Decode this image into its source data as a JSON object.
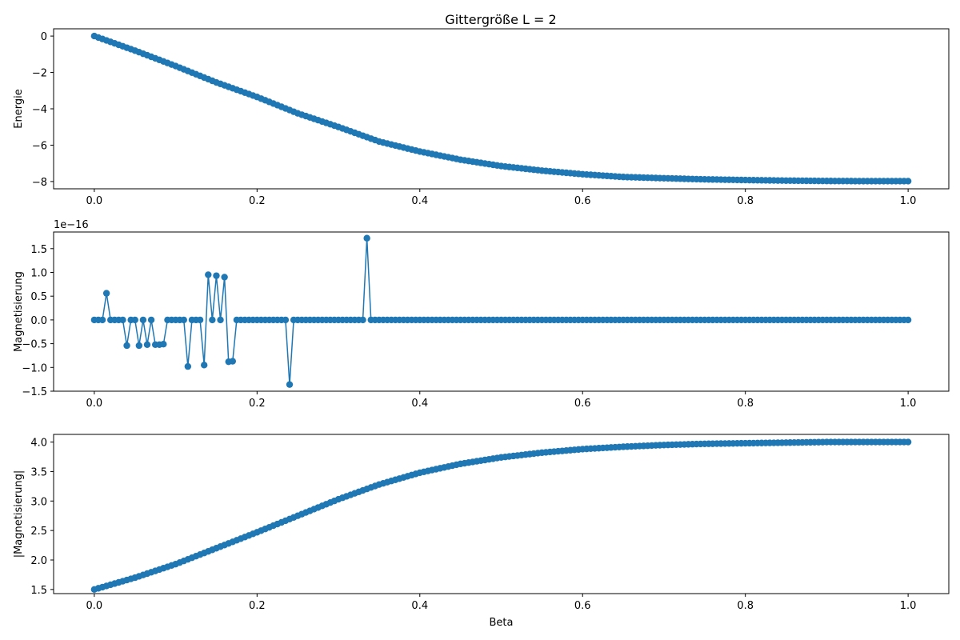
{
  "figure": {
    "title": "Gittergröße L = 2",
    "line_color": "#1f77b4"
  },
  "chart_data": [
    {
      "type": "line",
      "subtitle": "Gittergröße L = 2",
      "xlabel": "",
      "ylabel": "Energie",
      "xlim": [
        -0.05,
        1.05
      ],
      "ylim": [
        -8.4,
        0.4
      ],
      "xticks": [
        0.0,
        0.2,
        0.4,
        0.6,
        0.8,
        1.0
      ],
      "xtick_labels": [
        "0.0",
        "0.2",
        "0.4",
        "0.6",
        "0.8",
        "1.0"
      ],
      "yticks": [
        0,
        -2,
        -4,
        -6,
        -8
      ],
      "ytick_labels": [
        "0",
        "−2",
        "−4",
        "−6",
        "−8"
      ],
      "offset_text": "",
      "marker": "circle",
      "series": [
        {
          "x_range": [
            0.0,
            1.0
          ],
          "n_points": 201,
          "x_key": [
            0.0,
            0.05,
            0.1,
            0.15,
            0.2,
            0.25,
            0.3,
            0.35,
            0.4,
            0.45,
            0.5,
            0.55,
            0.6,
            0.65,
            0.7,
            0.75,
            0.8,
            0.85,
            0.9,
            0.95,
            1.0
          ],
          "y_key": [
            0.0,
            -0.8,
            -1.65,
            -2.55,
            -3.35,
            -4.25,
            -5.0,
            -5.8,
            -6.35,
            -6.8,
            -7.15,
            -7.4,
            -7.6,
            -7.75,
            -7.82,
            -7.88,
            -7.92,
            -7.95,
            -7.97,
            -7.98,
            -7.98
          ]
        }
      ]
    },
    {
      "type": "line",
      "xlabel": "",
      "ylabel": "Magnetisierung",
      "xlim": [
        -0.05,
        1.05
      ],
      "ylim": [
        -1.5,
        1.85
      ],
      "xticks": [
        0.0,
        0.2,
        0.4,
        0.6,
        0.8,
        1.0
      ],
      "xtick_labels": [
        "0.0",
        "0.2",
        "0.4",
        "0.6",
        "0.8",
        "1.0"
      ],
      "yticks": [
        1.5,
        1.0,
        0.5,
        0.0,
        -0.5,
        -1.0,
        -1.5
      ],
      "ytick_labels": [
        "1.5",
        "1.0",
        "0.5",
        "0.0",
        "−0.5",
        "−1.0",
        "−1.5"
      ],
      "offset_text": "1e−16",
      "marker": "circle",
      "series": [
        {
          "x_range": [
            0.0,
            1.0
          ],
          "n_points": 201,
          "baseline": 0.0,
          "spikes_x": [
            0.015,
            0.04,
            0.055,
            0.065,
            0.075,
            0.08,
            0.085,
            0.115,
            0.135,
            0.14,
            0.15,
            0.16,
            0.165,
            0.17,
            0.24,
            0.335
          ],
          "spikes_y": [
            0.56,
            -0.54,
            -0.54,
            -0.52,
            -0.52,
            -0.52,
            -0.51,
            -0.98,
            -0.95,
            0.95,
            0.93,
            0.9,
            -0.88,
            -0.87,
            -1.36,
            1.72
          ]
        }
      ]
    },
    {
      "type": "line",
      "xlabel": "Beta",
      "ylabel": "|Magnetisierung|",
      "xlim": [
        -0.05,
        1.05
      ],
      "ylim": [
        1.43,
        4.13
      ],
      "xticks": [
        0.0,
        0.2,
        0.4,
        0.6,
        0.8,
        1.0
      ],
      "xtick_labels": [
        "0.0",
        "0.2",
        "0.4",
        "0.6",
        "0.8",
        "1.0"
      ],
      "yticks": [
        1.5,
        2.0,
        2.5,
        3.0,
        3.5,
        4.0
      ],
      "ytick_labels": [
        "1.5",
        "2.0",
        "2.5",
        "3.0",
        "3.5",
        "4.0"
      ],
      "offset_text": "",
      "marker": "circle",
      "series": [
        {
          "x_range": [
            0.0,
            1.0
          ],
          "n_points": 201,
          "x_key": [
            0.0,
            0.05,
            0.1,
            0.15,
            0.2,
            0.25,
            0.3,
            0.35,
            0.4,
            0.45,
            0.5,
            0.55,
            0.6,
            0.65,
            0.7,
            0.75,
            0.8,
            0.85,
            0.9,
            0.95,
            1.0
          ],
          "y_key": [
            1.5,
            1.7,
            1.93,
            2.2,
            2.47,
            2.75,
            3.03,
            3.28,
            3.48,
            3.63,
            3.74,
            3.82,
            3.88,
            3.92,
            3.95,
            3.97,
            3.98,
            3.99,
            4.0,
            4.0,
            4.0
          ]
        }
      ]
    }
  ]
}
